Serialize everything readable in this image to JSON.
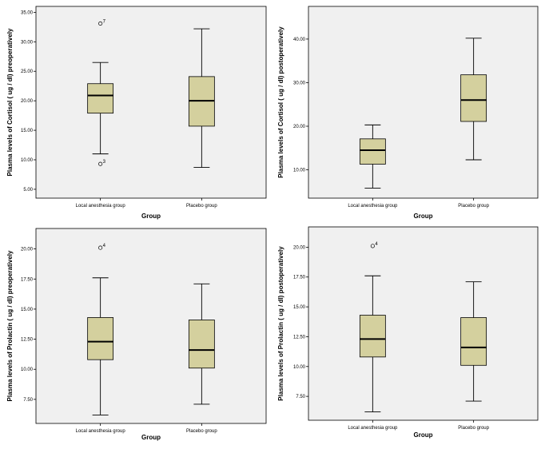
{
  "chart_data": [
    {
      "type": "boxplot",
      "xlabel": "Group",
      "ylabel": "Plasma levels of Cortisol ( ug / dl) preoperatively",
      "ylim": [
        3.5,
        36
      ],
      "yticks": [
        "5.00",
        "10.00",
        "15.00",
        "20.00",
        "25.00",
        "30.00",
        "35.00"
      ],
      "yticks_values": [
        5,
        10,
        15,
        20,
        25,
        30,
        35
      ],
      "categories": [
        "Local anesthesia group",
        "Placebo group"
      ],
      "boxes": [
        {
          "min": 11.0,
          "q1": 17.9,
          "median": 20.9,
          "q3": 22.9,
          "max": 26.5,
          "outliers": [
            {
              "value": 33.1,
              "label": "7"
            },
            {
              "value": 9.3,
              "label": "3"
            }
          ]
        },
        {
          "min": 8.7,
          "q1": 15.7,
          "median": 20.0,
          "q3": 24.1,
          "max": 32.2,
          "outliers": []
        }
      ]
    },
    {
      "type": "boxplot",
      "xlabel": "Group",
      "ylabel": "Plasma levels of Cortisol ( ug / dl) postoperatively",
      "ylim": [
        3.5,
        47.5
      ],
      "yticks": [
        "10.00",
        "20.00",
        "30.00",
        "40.00"
      ],
      "yticks_values": [
        10,
        20,
        30,
        40
      ],
      "categories": [
        "Local anesthesia group",
        "Placebo group"
      ],
      "boxes": [
        {
          "min": 5.8,
          "q1": 11.3,
          "median": 14.5,
          "q3": 17.1,
          "max": 20.3,
          "outliers": []
        },
        {
          "min": 12.3,
          "q1": 21.1,
          "median": 26.0,
          "q3": 31.8,
          "max": 40.2,
          "outliers": []
        }
      ]
    },
    {
      "type": "boxplot",
      "xlabel": "Group",
      "ylabel": "Plasma levels of Prolactin ( ug / dl) preoperatively",
      "ylim": [
        5.5,
        21.7
      ],
      "yticks": [
        "7.50",
        "10.00",
        "12.50",
        "15.00",
        "17.50",
        "20.00"
      ],
      "yticks_values": [
        7.5,
        10,
        12.5,
        15,
        17.5,
        20
      ],
      "categories": [
        "Local anesthesia group",
        "Placebo group"
      ],
      "boxes": [
        {
          "min": 6.2,
          "q1": 10.8,
          "median": 12.3,
          "q3": 14.3,
          "max": 17.6,
          "outliers": [
            {
              "value": 20.1,
              "label": "4"
            }
          ]
        },
        {
          "min": 7.1,
          "q1": 10.1,
          "median": 11.6,
          "q3": 14.1,
          "max": 17.1,
          "outliers": []
        }
      ]
    },
    {
      "type": "boxplot",
      "xlabel": "Group",
      "ylabel": "Plasma levels of Prolactin ( ug / dl) postoperatively",
      "ylim": [
        5.5,
        21.7
      ],
      "yticks": [
        "7.50",
        "10.00",
        "12.50",
        "15.00",
        "17.50",
        "20.00"
      ],
      "yticks_values": [
        7.5,
        10,
        12.5,
        15,
        17.5,
        20
      ],
      "categories": [
        "Local anesthesia group",
        "Placebo group"
      ],
      "boxes": [
        {
          "min": 6.2,
          "q1": 10.8,
          "median": 12.3,
          "q3": 14.3,
          "max": 17.6,
          "outliers": [
            {
              "value": 20.1,
              "label": "4"
            }
          ]
        },
        {
          "min": 7.1,
          "q1": 10.1,
          "median": 11.6,
          "q3": 14.1,
          "max": 17.1,
          "outliers": []
        }
      ]
    }
  ]
}
